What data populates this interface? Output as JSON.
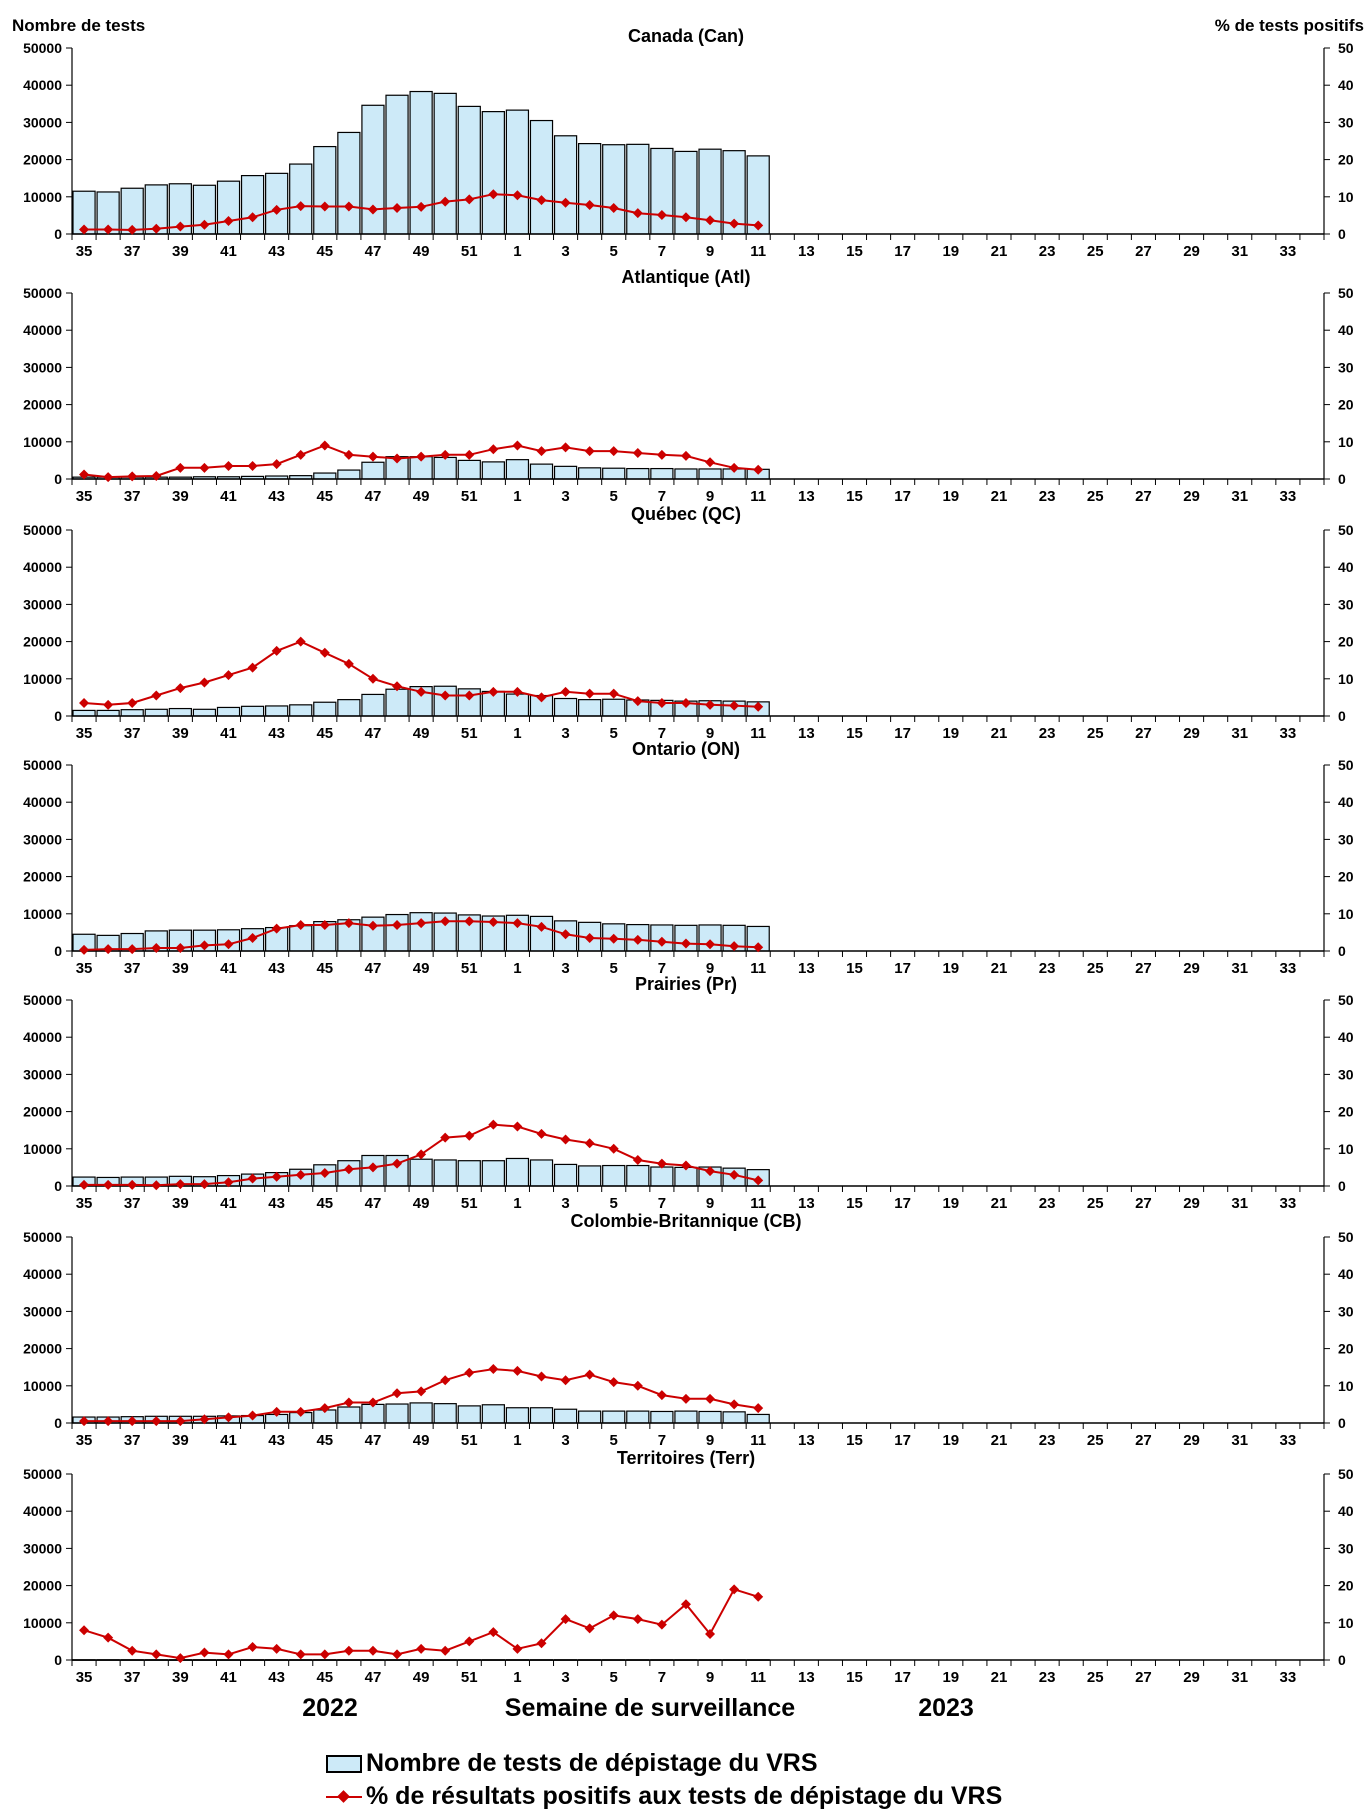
{
  "left_axis_title": "Nombre de tests",
  "right_axis_title": "% de tests positifs",
  "x_axis_title": "Semaine de surveillance",
  "year_labels": [
    "2022",
    "2023"
  ],
  "legend": {
    "bars": "Nombre de tests de dépistage du VRS",
    "line": "% de résultats positifs aux tests de dépistage du VRS"
  },
  "colors": {
    "bar_fill": "#cdeaf8",
    "bar_stroke": "#000000",
    "line": "#cc0000"
  },
  "chart_data": [
    {
      "type": "bar",
      "title": "Canada (Can)",
      "weeks": [
        "35",
        "36",
        "37",
        "38",
        "39",
        "40",
        "41",
        "42",
        "43",
        "44",
        "45",
        "46",
        "47",
        "48",
        "49",
        "50",
        "51",
        "52",
        "1",
        "2",
        "3",
        "4",
        "5",
        "6",
        "7",
        "8",
        "9",
        "10",
        "11",
        "12",
        "13",
        "14",
        "15",
        "16",
        "17",
        "18",
        "19",
        "20",
        "21",
        "22",
        "23",
        "24",
        "25",
        "26",
        "27",
        "28",
        "29",
        "30",
        "31",
        "32",
        "33",
        "34"
      ],
      "tick_labels": [
        "35",
        "37",
        "39",
        "41",
        "43",
        "45",
        "47",
        "49",
        "51",
        "1",
        "3",
        "5",
        "7",
        "9",
        "11",
        "13",
        "15",
        "17",
        "19",
        "21",
        "23",
        "25",
        "27",
        "29",
        "31",
        "33"
      ],
      "ylim_left": [
        0,
        50000
      ],
      "ylim_right": [
        0,
        50
      ],
      "yticks_left": [
        0,
        10000,
        20000,
        30000,
        40000,
        50000
      ],
      "yticks_right": [
        0,
        10,
        20,
        30,
        40,
        50
      ],
      "series": [
        {
          "name": "Nombre de tests de dépistage du VRS",
          "axis": "left",
          "values": [
            11500,
            11300,
            12300,
            13200,
            13500,
            13100,
            14200,
            15700,
            16300,
            18800,
            23500,
            27300,
            34600,
            37300,
            38300,
            37800,
            34300,
            32900,
            33300,
            30500,
            26400,
            24300,
            24000,
            24100,
            23000,
            22200,
            22800,
            22400,
            21000
          ]
        },
        {
          "name": "% de résultats positifs aux tests de dépistage du VRS",
          "axis": "right",
          "values": [
            1.2,
            1.2,
            1.1,
            1.4,
            2.0,
            2.5,
            3.5,
            4.5,
            6.5,
            7.5,
            7.4,
            7.4,
            6.6,
            7.0,
            7.3,
            8.7,
            9.3,
            10.7,
            10.4,
            9.1,
            8.4,
            7.8,
            7.0,
            5.6,
            5.1,
            4.5,
            3.7,
            2.8,
            2.3
          ]
        }
      ]
    },
    {
      "type": "bar",
      "title": "Atlantique (Atl)",
      "ylim_left": [
        0,
        50000
      ],
      "ylim_right": [
        0,
        50
      ],
      "series": [
        {
          "name": "Nombre de tests de dépistage du VRS",
          "axis": "left",
          "values": [
            500,
            500,
            500,
            500,
            500,
            600,
            600,
            700,
            800,
            900,
            1600,
            2400,
            4500,
            6000,
            6000,
            5800,
            5000,
            4600,
            5200,
            4000,
            3400,
            3000,
            2900,
            2800,
            2800,
            2700,
            2700,
            2700,
            2600
          ]
        },
        {
          "name": "% de résultats positifs aux tests de dépistage du VRS",
          "axis": "right",
          "values": [
            1.2,
            0.5,
            0.7,
            0.8,
            3.0,
            3.0,
            3.5,
            3.5,
            4.0,
            6.5,
            9.0,
            6.5,
            6.0,
            5.5,
            6.0,
            6.5,
            6.5,
            8.0,
            9.0,
            7.5,
            8.5,
            7.5,
            7.5,
            7.0,
            6.5,
            6.2,
            4.5,
            3.0,
            2.5
          ]
        }
      ]
    },
    {
      "type": "bar",
      "title": "Québec (QC)",
      "ylim_left": [
        0,
        50000
      ],
      "ylim_right": [
        0,
        50
      ],
      "series": [
        {
          "name": "Nombre de tests de dépistage du VRS",
          "axis": "left",
          "values": [
            1500,
            1500,
            1700,
            1800,
            2000,
            1800,
            2300,
            2600,
            2700,
            3000,
            3700,
            4400,
            5800,
            7200,
            7900,
            8000,
            7300,
            6600,
            5900,
            5500,
            4700,
            4400,
            4500,
            4300,
            4200,
            4000,
            4100,
            4000,
            3800
          ]
        },
        {
          "name": "% de résultats positifs aux tests de dépistage du VRS",
          "axis": "right",
          "values": [
            3.5,
            3.0,
            3.5,
            5.5,
            7.5,
            9.0,
            11.0,
            13.0,
            17.5,
            20.0,
            17.0,
            14.0,
            10.0,
            8.0,
            6.5,
            5.5,
            5.5,
            6.5,
            6.5,
            5.0,
            6.5,
            6.0,
            6.0,
            4.0,
            3.5,
            3.5,
            3.0,
            2.8,
            2.5
          ]
        }
      ]
    },
    {
      "type": "bar",
      "title": "Ontario (ON)",
      "ylim_left": [
        0,
        50000
      ],
      "ylim_right": [
        0,
        50
      ],
      "series": [
        {
          "name": "Nombre de tests de dépistage du VRS",
          "axis": "left",
          "values": [
            4500,
            4200,
            4700,
            5400,
            5600,
            5600,
            5700,
            6000,
            6300,
            6800,
            7900,
            8400,
            9100,
            9800,
            10300,
            10200,
            9700,
            9400,
            9600,
            9300,
            8100,
            7700,
            7300,
            7100,
            7000,
            6900,
            7000,
            6900,
            6600
          ]
        },
        {
          "name": "% de résultats positifs aux tests de dépistage du VRS",
          "axis": "right",
          "values": [
            0.3,
            0.5,
            0.5,
            0.8,
            0.8,
            1.5,
            1.8,
            3.5,
            6.0,
            7.0,
            7.0,
            7.5,
            6.8,
            7.0,
            7.5,
            8.0,
            8.0,
            7.8,
            7.5,
            6.5,
            4.5,
            3.5,
            3.3,
            3.0,
            2.5,
            2.0,
            1.8,
            1.3,
            1.0
          ]
        }
      ]
    },
    {
      "type": "bar",
      "title": "Prairies (Pr)",
      "ylim_left": [
        0,
        50000
      ],
      "ylim_right": [
        0,
        50
      ],
      "series": [
        {
          "name": "Nombre de tests de dépistage du VRS",
          "axis": "left",
          "values": [
            2400,
            2300,
            2400,
            2400,
            2600,
            2500,
            2800,
            3200,
            3600,
            4500,
            5700,
            6800,
            8200,
            8200,
            7200,
            7000,
            6800,
            6800,
            7400,
            7000,
            5800,
            5400,
            5500,
            5500,
            5100,
            5000,
            5100,
            4800,
            4400
          ]
        },
        {
          "name": "% de résultats positifs aux tests de dépistage du VRS",
          "axis": "right",
          "values": [
            0.3,
            0.3,
            0.3,
            0.2,
            0.5,
            0.5,
            1.0,
            2.0,
            2.5,
            3.0,
            3.5,
            4.5,
            5.0,
            6.0,
            8.5,
            13.0,
            13.5,
            16.5,
            16.0,
            14.0,
            12.5,
            11.5,
            10.0,
            7.0,
            6.0,
            5.5,
            4.0,
            3.0,
            1.5
          ]
        }
      ]
    },
    {
      "type": "bar",
      "title": "Colombie-Britannique (CB)",
      "ylim_left": [
        0,
        50000
      ],
      "ylim_right": [
        0,
        50
      ],
      "series": [
        {
          "name": "Nombre de tests de dépistage du VRS",
          "axis": "left",
          "values": [
            1600,
            1600,
            1700,
            1800,
            1800,
            1800,
            1900,
            2000,
            2300,
            2800,
            3500,
            4300,
            5000,
            5100,
            5400,
            5200,
            4600,
            4900,
            4100,
            4100,
            3700,
            3200,
            3200,
            3200,
            3100,
            3200,
            3100,
            3000,
            2300
          ]
        },
        {
          "name": "% de résultats positifs aux tests de dépistage du VRS",
          "axis": "right",
          "values": [
            0.5,
            0.5,
            0.5,
            0.5,
            0.5,
            1.0,
            1.5,
            2.0,
            3.0,
            3.0,
            4.0,
            5.5,
            5.5,
            8.0,
            8.5,
            11.5,
            13.5,
            14.5,
            14.0,
            12.5,
            11.5,
            13.0,
            11.0,
            10.0,
            7.5,
            6.5,
            6.5,
            5.0,
            4.0
          ]
        }
      ]
    },
    {
      "type": "bar",
      "title": "Territoires (Terr)",
      "ylim_left": [
        0,
        50000
      ],
      "ylim_right": [
        0,
        50
      ],
      "series": [
        {
          "name": "Nombre de tests de dépistage du VRS",
          "axis": "left",
          "values": [
            60,
            60,
            60,
            60,
            60,
            60,
            60,
            60,
            60,
            60,
            60,
            60,
            60,
            60,
            60,
            60,
            60,
            60,
            60,
            60,
            60,
            60,
            60,
            60,
            60,
            60,
            60,
            60,
            60
          ]
        },
        {
          "name": "% de résultats positifs aux tests de dépistage du VRS",
          "axis": "right",
          "values": [
            8.0,
            6.0,
            2.5,
            1.5,
            0.5,
            2.0,
            1.5,
            3.5,
            3.0,
            1.5,
            1.5,
            2.5,
            2.5,
            1.5,
            3.0,
            2.5,
            5.0,
            7.5,
            3.0,
            4.5,
            11.0,
            8.5,
            12.0,
            11.0,
            9.5,
            15.0,
            7.0,
            19.0,
            17.0
          ]
        }
      ]
    }
  ]
}
